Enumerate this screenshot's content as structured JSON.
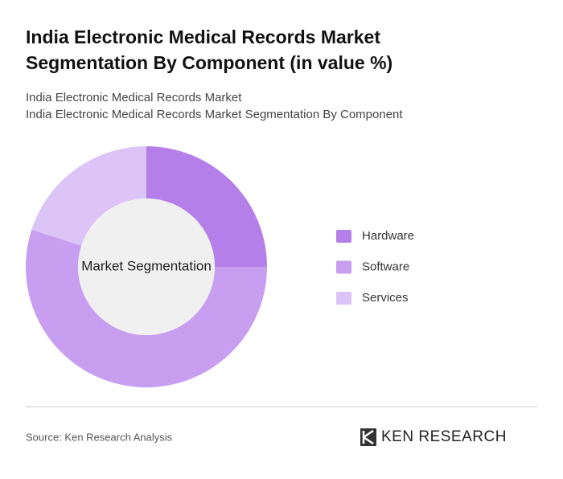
{
  "chart_data": {
    "type": "donut",
    "title": "India Electronic Medical Records Market Segmentation By Component (in value %)",
    "subtitle": [
      "India Electronic Medical Records Market",
      "India Electronic Medical Records Market Segmentation By Component"
    ],
    "center_label": "Market Segmentation",
    "categories": [
      "Hardware",
      "Software",
      "Services"
    ],
    "values": [
      25,
      55,
      20
    ],
    "colors": [
      "#b57fea",
      "#c89ef0",
      "#dcc4f6"
    ],
    "source": "Source: Ken Research Analysis",
    "logo": "KEN RESEARCH"
  }
}
